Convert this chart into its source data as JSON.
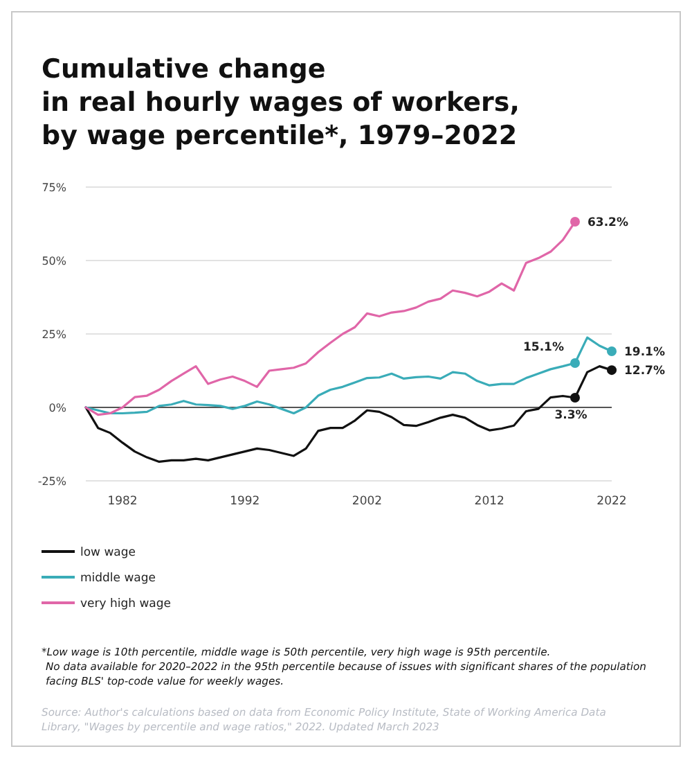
{
  "chart_data": {
    "type": "line",
    "title": "Cumulative change\nin real hourly wages of workers,\nby wage percentile*, 1979–2022",
    "x": [
      1979,
      1980,
      1981,
      1982,
      1983,
      1984,
      1985,
      1986,
      1987,
      1988,
      1989,
      1990,
      1991,
      1992,
      1993,
      1994,
      1995,
      1996,
      1997,
      1998,
      1999,
      2000,
      2001,
      2002,
      2003,
      2004,
      2005,
      2006,
      2007,
      2008,
      2009,
      2010,
      2011,
      2012,
      2013,
      2014,
      2015,
      2016,
      2017,
      2018,
      2019,
      2020,
      2021,
      2022
    ],
    "series": [
      {
        "name": "low wage",
        "color": "#111111",
        "values": [
          0,
          -7,
          -8.7,
          -12,
          -15,
          -17,
          -18.5,
          -18,
          -18,
          -17.5,
          -18,
          -17,
          -16,
          -15,
          -14,
          -14.5,
          -15.5,
          -16.5,
          -14,
          -8,
          -7,
          -7,
          -4.5,
          -1,
          -1.5,
          -3.3,
          -6,
          -6.3,
          -5,
          -3.5,
          -2.5,
          -3.5,
          -6,
          -7.8,
          -7.2,
          -6.2,
          -1.3,
          -0.5,
          3.4,
          3.9,
          3.3,
          12,
          14,
          12.7
        ],
        "value_labels": [
          null,
          null,
          null,
          null,
          null,
          null,
          null,
          null,
          null,
          null,
          null,
          null,
          null,
          null,
          null,
          null,
          null,
          null,
          null,
          null,
          null,
          null,
          null,
          null,
          null,
          null,
          null,
          null,
          null,
          null,
          null,
          null,
          null,
          null,
          null,
          null,
          null,
          null,
          null,
          null,
          "3.3%",
          null,
          null,
          "12.7%"
        ]
      },
      {
        "name": "middle wage",
        "color": "#3aacb8",
        "values": [
          0,
          -1,
          -2,
          -2,
          -1.8,
          -1.5,
          0.5,
          1,
          2.2,
          1,
          0.8,
          0.5,
          -0.5,
          0.5,
          2,
          1,
          -0.5,
          -2,
          0,
          4,
          6,
          7,
          8.5,
          10,
          10.2,
          11.5,
          9.8,
          10.3,
          10.5,
          9.8,
          12,
          11.5,
          9,
          7.5,
          8,
          8,
          10,
          11.5,
          13,
          14,
          15.1,
          23.8,
          21,
          19.1
        ],
        "value_labels": [
          null,
          null,
          null,
          null,
          null,
          null,
          null,
          null,
          null,
          null,
          null,
          null,
          null,
          null,
          null,
          null,
          null,
          null,
          null,
          null,
          null,
          null,
          null,
          null,
          null,
          null,
          null,
          null,
          null,
          null,
          null,
          null,
          null,
          null,
          null,
          null,
          null,
          null,
          null,
          null,
          "15.1%",
          null,
          null,
          "19.1%"
        ]
      },
      {
        "name": "very high wage",
        "color": "#e066a8",
        "values": [
          0,
          -2.5,
          -2,
          0,
          3.5,
          4,
          6,
          9,
          11.5,
          14,
          8,
          9.5,
          10.5,
          9,
          7,
          12.5,
          13,
          13.5,
          15,
          18.8,
          22,
          25,
          27.3,
          32,
          31,
          32.3,
          32.8,
          34,
          36,
          37,
          39.8,
          39,
          37.8,
          39.4,
          42.2,
          39.8,
          49.2,
          50.8,
          53,
          57,
          63.2,
          null,
          null,
          null
        ],
        "value_labels": [
          null,
          null,
          null,
          null,
          null,
          null,
          null,
          null,
          null,
          null,
          null,
          null,
          null,
          null,
          null,
          null,
          null,
          null,
          null,
          null,
          null,
          null,
          null,
          null,
          null,
          null,
          null,
          null,
          null,
          null,
          null,
          null,
          null,
          null,
          null,
          null,
          null,
          null,
          null,
          null,
          "63.2%",
          null,
          null,
          null
        ]
      }
    ],
    "xlim": [
      1979,
      2022
    ],
    "xticks": [
      1982,
      1992,
      2002,
      2012,
      2022
    ],
    "ylim": [
      -25,
      75
    ],
    "yticks": [
      {
        "value": -25,
        "label": "-25%"
      },
      {
        "value": 0,
        "label": "0%"
      },
      {
        "value": 25,
        "label": "25%"
      },
      {
        "value": 50,
        "label": "50%"
      },
      {
        "value": 75,
        "label": "75%"
      }
    ],
    "grid": "y",
    "legend": "bottom",
    "marker": "none",
    "line_style": "solid",
    "annotations": [
      "*Low wage is 10th percentile, middle wage is 50th percentile, very high wage is 95th percentile.\nNo data available for 2020–2022 in the 95th percentile because of issues with significant shares of the population\nfacing BLS' top-code value for weekly wages.",
      "Source: Author's calculations based on data from Economic Policy Institute, State of Working America Data\nLibrary, \"Wages by percentile and wage ratios,\" 2022. Updated March 2023"
    ]
  }
}
